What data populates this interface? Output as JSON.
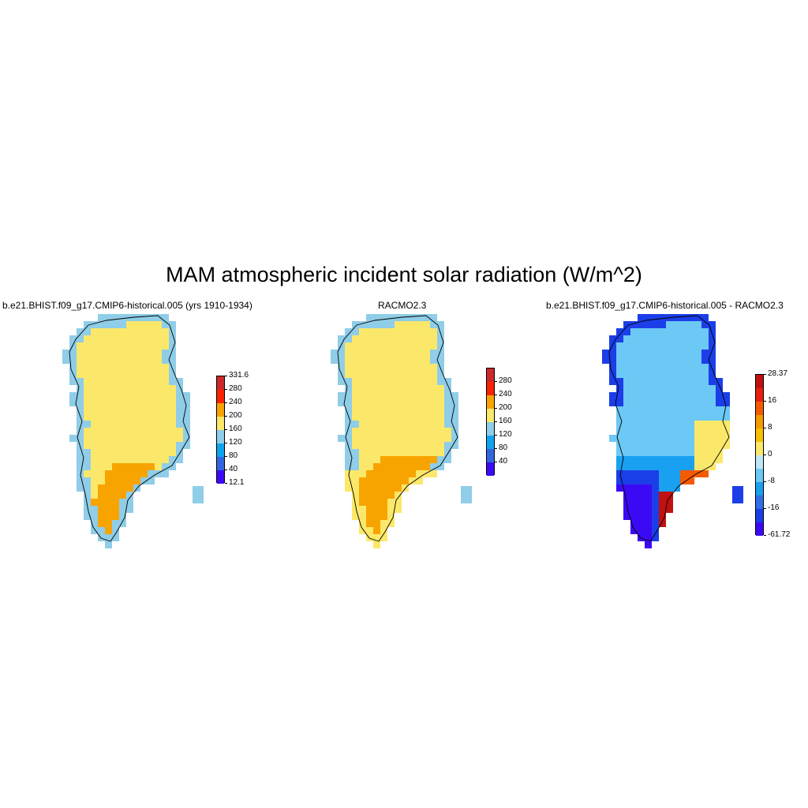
{
  "title": "MAM atmospheric incident solar radiation (W/m^2)",
  "panels": [
    {
      "title": "b.e21.BHIST.f09_g17.CMIP6-historical.005 (yrs 1910-1934)",
      "colorbar": {
        "colors": [
          "#3b0af5",
          "#3366dd",
          "#0ea5f0",
          "#8fcde8",
          "#fbe86a",
          "#f8a400",
          "#fd2200",
          "#cc2a2a"
        ],
        "labels": [
          "12.1",
          "40",
          "80",
          "120",
          "160",
          "200",
          "240",
          "280",
          "331.6"
        ]
      },
      "field": "model"
    },
    {
      "title": "RACMO2.3",
      "colorbar": {
        "colors": [
          "#3b0af5",
          "#3366dd",
          "#0ea5f0",
          "#8fcde8",
          "#fbe86a",
          "#f8a400",
          "#fd2200",
          "#cc2a2a"
        ],
        "labels": [
          "",
          "40",
          "80",
          "120",
          "160",
          "200",
          "240",
          "280",
          ""
        ]
      },
      "field": "racmo"
    },
    {
      "title": "b.e21.BHIST.f09_g17.CMIP6-historical.005 - RACMO2.3",
      "colorbar": {
        "colors": [
          "#3b0af5",
          "#1b3ee8",
          "#2f6fe8",
          "#1aa0f0",
          "#6cc8f4",
          "#bfe6f6",
          "#fbe86a",
          "#f8c000",
          "#f59a00",
          "#f45a00",
          "#e82010",
          "#c01010"
        ],
        "labels": [
          "-61.72",
          "",
          "-16",
          "",
          "-8",
          "",
          "0",
          "",
          "8",
          "",
          "16",
          "",
          "28.37"
        ]
      },
      "field": "diff"
    }
  ]
}
